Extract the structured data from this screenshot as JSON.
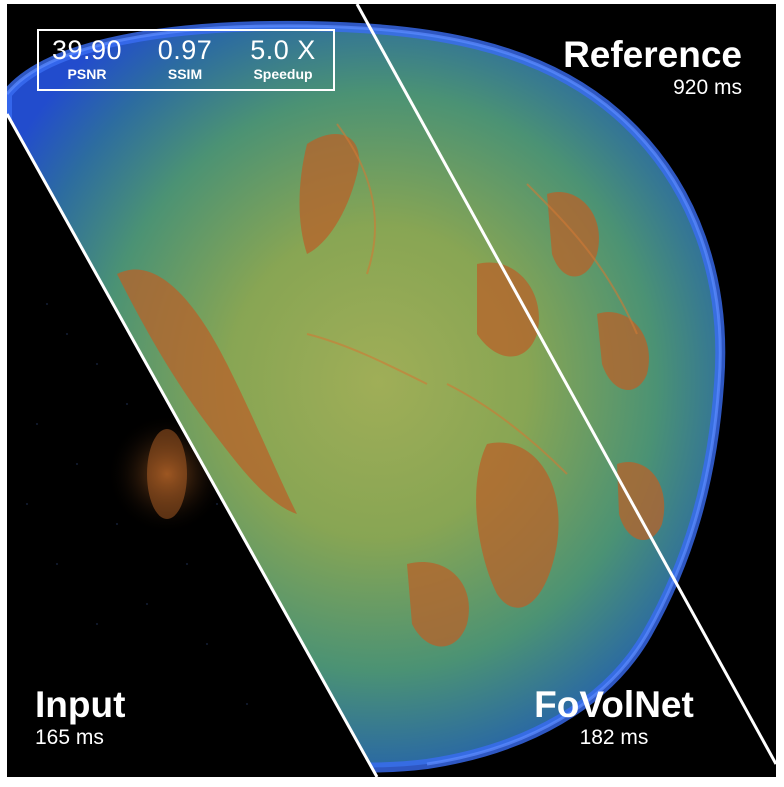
{
  "metrics": [
    {
      "value": "39.90",
      "label": "PSNR"
    },
    {
      "value": "0.97",
      "label": "SSIM"
    },
    {
      "value": "5.0 X",
      "label": "Speedup"
    }
  ],
  "panels": {
    "reference": {
      "name": "Reference",
      "time": "920 ms"
    },
    "input": {
      "name": "Input",
      "time": "165 ms"
    },
    "fovolnet": {
      "name": "FoVolNet",
      "time": "182 ms"
    }
  },
  "colors": {
    "background": "#000000",
    "volume_core": "#7fae5a",
    "volume_edge": "#2a5fe6",
    "feature_orange": "#c46a2a",
    "divider": "#ffffff",
    "text": "#ffffff"
  },
  "icons": []
}
